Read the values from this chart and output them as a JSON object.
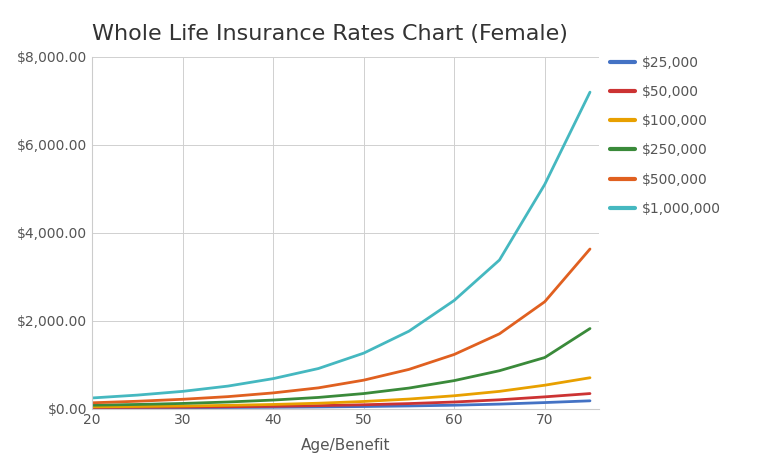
{
  "title": "Whole Life Insurance Rates Chart (Female)",
  "xlabel": "Age/Benefit",
  "background_color": "#ffffff",
  "plot_bg_color": "#ffffff",
  "grid_color": "#d0d0d0",
  "ages": [
    20,
    25,
    30,
    35,
    40,
    45,
    50,
    55,
    60,
    65,
    70,
    75
  ],
  "series": [
    {
      "label": "$25,000",
      "color": "#4472c4",
      "values": [
        14,
        16,
        19,
        23,
        28,
        35,
        45,
        58,
        75,
        100,
        135,
        175
      ]
    },
    {
      "label": "$50,000",
      "color": "#cc3333",
      "values": [
        22,
        27,
        33,
        40,
        50,
        65,
        85,
        112,
        148,
        198,
        265,
        340
      ]
    },
    {
      "label": "$100,000",
      "color": "#e8a000",
      "values": [
        38,
        46,
        57,
        72,
        92,
        120,
        160,
        215,
        290,
        390,
        530,
        700
      ]
    },
    {
      "label": "$250,000",
      "color": "#3a8a3a",
      "values": [
        75,
        92,
        115,
        148,
        192,
        252,
        340,
        465,
        635,
        860,
        1160,
        1820
      ]
    },
    {
      "label": "$500,000",
      "color": "#e06020",
      "values": [
        130,
        165,
        210,
        270,
        355,
        470,
        645,
        890,
        1230,
        1700,
        2430,
        3630
      ]
    },
    {
      "label": "$1,000,000",
      "color": "#45b8c0",
      "values": [
        240,
        305,
        390,
        510,
        680,
        910,
        1260,
        1760,
        2460,
        3380,
        5100,
        7200
      ]
    }
  ],
  "ylim": [
    0,
    8000
  ],
  "yticks": [
    0,
    2000,
    4000,
    6000,
    8000
  ],
  "xlim": [
    20,
    76
  ],
  "xticks": [
    20,
    30,
    40,
    50,
    60,
    70
  ],
  "title_fontsize": 16,
  "axis_label_fontsize": 11,
  "tick_fontsize": 10,
  "legend_fontsize": 10,
  "line_width": 2.0
}
